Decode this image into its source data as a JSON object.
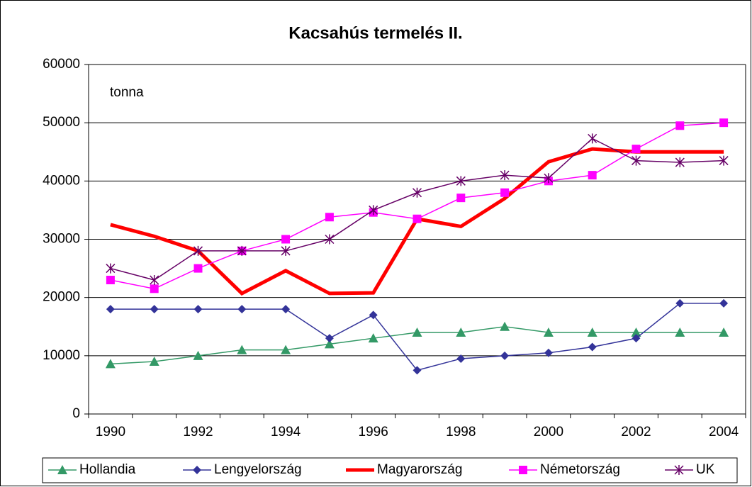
{
  "chart_data": {
    "type": "line",
    "title": "Kacsahús termelés II.",
    "annotation": "tonna",
    "categories": [
      "1990",
      null,
      "1992",
      null,
      "1994",
      null,
      "1996",
      null,
      "1998",
      null,
      "2000",
      null,
      "2002",
      null,
      "2004"
    ],
    "series": [
      {
        "name": "Hollandia",
        "color": "#339966",
        "marker": "triangle",
        "values": [
          8600,
          9000,
          10000,
          11000,
          11000,
          12000,
          13000,
          14000,
          14000,
          15000,
          14000,
          14000,
          14000,
          14000,
          14000
        ]
      },
      {
        "name": "Lengyelország",
        "color": "#333399",
        "marker": "diamond",
        "values": [
          18000,
          18000,
          18000,
          18000,
          18000,
          13000,
          17000,
          7500,
          9500,
          10000,
          10500,
          11500,
          13000,
          19000,
          19000
        ]
      },
      {
        "name": "Magyarország",
        "color": "#ff0000",
        "marker": "none",
        "values": [
          32500,
          30500,
          28000,
          20700,
          24600,
          20700,
          20800,
          33500,
          32200,
          37000,
          43300,
          45500,
          45000,
          45000,
          45000
        ]
      },
      {
        "name": "Németország",
        "color": "#ff00ff",
        "marker": "square",
        "values": [
          23000,
          21500,
          25000,
          28000,
          30000,
          33800,
          34600,
          33500,
          37100,
          38000,
          40000,
          41000,
          45500,
          49500,
          50000
        ]
      },
      {
        "name": "UK",
        "color": "#660066",
        "marker": "star",
        "values": [
          25000,
          23000,
          28000,
          28000,
          28000,
          30000,
          35000,
          38000,
          40000,
          41000,
          40500,
          47300,
          43500,
          43200,
          43500
        ]
      }
    ],
    "ylim": [
      0,
      60000
    ],
    "yticks": [
      0,
      10000,
      20000,
      30000,
      40000,
      50000,
      60000
    ],
    "grid": true,
    "legend": "bottom"
  }
}
